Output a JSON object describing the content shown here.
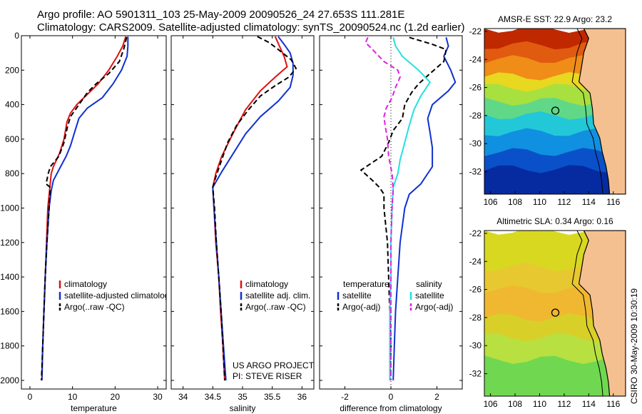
{
  "figure": {
    "title_line1": "Argo profile: AO 5901311_103 25-May-2009 20090526_24 27.653S 111.281E",
    "title_line2": "Climatology: CARS2009. Satellite-adjusted climatology: synTS_20090524.nc (1.2d earlier)",
    "side_stamp": "CSIRO 30-May-2009 10:30:19"
  },
  "colors": {
    "climatology": "#e01010",
    "satellite": "#1030d0",
    "argo": "#000000",
    "satellite_salinity": "#22e0e0",
    "argo_salinity": "#e020e0",
    "land": "#f5c090"
  },
  "chart_data": [
    {
      "type": "line",
      "panel": "temperature",
      "xlabel": "temperature",
      "ylabel": "",
      "xlim": [
        -2,
        32
      ],
      "ylim": [
        2050,
        0
      ],
      "xticks": [
        0,
        10,
        20,
        30
      ],
      "yticks": [
        0,
        200,
        400,
        600,
        800,
        1000,
        1200,
        1400,
        1600,
        1800,
        2000
      ],
      "legend": [
        "climatology",
        "satellite-adjusted climatology",
        "Argo(..raw -QC)"
      ],
      "series": [
        {
          "name": "climatology",
          "color": "#e01010",
          "dash": "solid",
          "points": [
            [
              22.5,
              5
            ],
            [
              21.8,
              60
            ],
            [
              20.5,
              120
            ],
            [
              18.5,
              200
            ],
            [
              16,
              280
            ],
            [
              13.5,
              340
            ],
            [
              11,
              400
            ],
            [
              9.5,
              450
            ],
            [
              8.7,
              500
            ],
            [
              8,
              600
            ],
            [
              7,
              680
            ],
            [
              5.5,
              760
            ],
            [
              5,
              800
            ],
            [
              4.6,
              900
            ],
            [
              4.2,
              1000
            ],
            [
              3.9,
              1200
            ],
            [
              3.6,
              1400
            ],
            [
              3.3,
              1600
            ],
            [
              3,
              1800
            ],
            [
              2.8,
              2000
            ]
          ]
        },
        {
          "name": "satellite-adjusted climatology",
          "color": "#1030d0",
          "dash": "solid",
          "points": [
            [
              23,
              5
            ],
            [
              23,
              60
            ],
            [
              22.8,
              120
            ],
            [
              21.5,
              200
            ],
            [
              19.5,
              280
            ],
            [
              17,
              360
            ],
            [
              13.5,
              420
            ],
            [
              11.5,
              480
            ],
            [
              10.5,
              560
            ],
            [
              9.5,
              640
            ],
            [
              8.5,
              700
            ],
            [
              7,
              770
            ],
            [
              5.5,
              840
            ],
            [
              5,
              900
            ],
            [
              4.5,
              1000
            ],
            [
              4,
              1200
            ],
            [
              3.6,
              1400
            ],
            [
              3.3,
              1600
            ],
            [
              3,
              1800
            ],
            [
              2.8,
              2000
            ]
          ]
        },
        {
          "name": "Argo(..raw -QC)",
          "color": "#000000",
          "dash": "dash",
          "points": [
            [
              22.7,
              8
            ],
            [
              22.5,
              30
            ],
            [
              22,
              80
            ],
            [
              21,
              150
            ],
            [
              18.5,
              220
            ],
            [
              15.5,
              280
            ],
            [
              13.5,
              330
            ],
            [
              11.5,
              400
            ],
            [
              9.5,
              470
            ],
            [
              8.8,
              530
            ],
            [
              8,
              620
            ],
            [
              6.8,
              700
            ],
            [
              4.8,
              760
            ],
            [
              4.3,
              800
            ],
            [
              3.8,
              860
            ],
            [
              4.8,
              880
            ],
            [
              4.5,
              1000
            ],
            [
              4,
              1200
            ],
            [
              3.6,
              1400
            ],
            [
              3.3,
              1600
            ],
            [
              3,
              1800
            ],
            [
              2.7,
              2000
            ]
          ]
        }
      ]
    },
    {
      "type": "line",
      "panel": "salinity",
      "xlabel": "salinity",
      "ylabel": "",
      "xlim": [
        33.8,
        36.2
      ],
      "ylim": [
        2050,
        0
      ],
      "xticks": [
        34,
        34.5,
        35,
        35.5,
        36
      ],
      "yticks": [
        0,
        200,
        400,
        600,
        800,
        1000,
        1200,
        1400,
        1600,
        1800,
        2000
      ],
      "legend": [
        "climatology",
        "satellite adj. clim.",
        "Argo(..raw -QC)"
      ],
      "annotation": [
        "US ARGO PROJECT",
        "PI: STEVE RISER"
      ],
      "series": [
        {
          "name": "climatology",
          "color": "#e01010",
          "dash": "solid",
          "points": [
            [
              35.55,
              5
            ],
            [
              35.62,
              60
            ],
            [
              35.7,
              120
            ],
            [
              35.75,
              180
            ],
            [
              35.55,
              240
            ],
            [
              35.3,
              320
            ],
            [
              35.05,
              430
            ],
            [
              34.85,
              560
            ],
            [
              34.65,
              700
            ],
            [
              34.55,
              800
            ],
            [
              34.5,
              880
            ],
            [
              34.52,
              1000
            ],
            [
              34.55,
              1200
            ],
            [
              34.6,
              1400
            ],
            [
              34.63,
              1600
            ],
            [
              34.67,
              1800
            ],
            [
              34.7,
              2000
            ]
          ]
        },
        {
          "name": "satellite adj. clim.",
          "color": "#1030d0",
          "dash": "solid",
          "points": [
            [
              35.6,
              5
            ],
            [
              35.7,
              50
            ],
            [
              35.8,
              100
            ],
            [
              35.85,
              160
            ],
            [
              35.85,
              230
            ],
            [
              35.8,
              300
            ],
            [
              35.6,
              380
            ],
            [
              35.3,
              470
            ],
            [
              35.05,
              570
            ],
            [
              34.85,
              680
            ],
            [
              34.65,
              790
            ],
            [
              34.5,
              880
            ],
            [
              34.52,
              1000
            ],
            [
              34.56,
              1200
            ],
            [
              34.6,
              1400
            ],
            [
              34.64,
              1600
            ],
            [
              34.68,
              1800
            ],
            [
              34.72,
              2000
            ]
          ]
        },
        {
          "name": "Argo(..raw -QC)",
          "color": "#000000",
          "dash": "dash",
          "points": [
            [
              35.25,
              5
            ],
            [
              35.45,
              40
            ],
            [
              35.6,
              80
            ],
            [
              35.82,
              140
            ],
            [
              35.9,
              190
            ],
            [
              35.78,
              240
            ],
            [
              35.55,
              290
            ],
            [
              35.3,
              350
            ],
            [
              35.1,
              430
            ],
            [
              34.9,
              520
            ],
            [
              34.75,
              620
            ],
            [
              34.65,
              720
            ],
            [
              34.55,
              820
            ],
            [
              34.5,
              880
            ],
            [
              34.53,
              1000
            ],
            [
              34.56,
              1200
            ],
            [
              34.6,
              1400
            ],
            [
              34.64,
              1600
            ],
            [
              34.67,
              1800
            ],
            [
              34.7,
              2000
            ]
          ]
        }
      ]
    },
    {
      "type": "line",
      "panel": "difference",
      "xlabel": "difference from climatology",
      "ylabel": "",
      "xlim": [
        -3.1,
        3.1
      ],
      "ylim": [
        2050,
        0
      ],
      "xticks": [
        -2,
        0,
        2
      ],
      "yticks": [
        0,
        200,
        400,
        600,
        800,
        1000,
        1200,
        1400,
        1600,
        1800,
        2000
      ],
      "legend_groups": [
        {
          "heading": "temperature",
          "entries": [
            "satellite",
            "Argo(-adj)"
          ]
        },
        {
          "heading": "salinity",
          "entries": [
            "satellite",
            "Argo(-adj)"
          ]
        }
      ],
      "zero_line": 0,
      "series": [
        {
          "name": "temperature satellite",
          "color": "#1030d0",
          "dash": "solid",
          "points": [
            [
              2.4,
              10
            ],
            [
              2.5,
              60
            ],
            [
              2.3,
              120
            ],
            [
              2.6,
              200
            ],
            [
              2.8,
              270
            ],
            [
              2.5,
              320
            ],
            [
              1.8,
              400
            ],
            [
              1.6,
              480
            ],
            [
              1.7,
              560
            ],
            [
              1.8,
              650
            ],
            [
              1.8,
              760
            ],
            [
              1.3,
              860
            ],
            [
              0.8,
              920
            ],
            [
              0.6,
              1000
            ],
            [
              0.4,
              1200
            ],
            [
              0.3,
              1400
            ],
            [
              0.2,
              1600
            ],
            [
              0.15,
              1800
            ],
            [
              0.1,
              2000
            ]
          ]
        },
        {
          "name": "temperature Argo(-adj)",
          "color": "#000000",
          "dash": "dash",
          "points": [
            [
              0.8,
              10
            ],
            [
              1.8,
              50
            ],
            [
              2.4,
              80
            ],
            [
              2.3,
              150
            ],
            [
              1.7,
              220
            ],
            [
              1.2,
              280
            ],
            [
              0.9,
              330
            ],
            [
              0.6,
              400
            ],
            [
              0.5,
              480
            ],
            [
              0.1,
              550
            ],
            [
              -0.1,
              620
            ],
            [
              -0.4,
              700
            ],
            [
              -1.3,
              780
            ],
            [
              -0.8,
              840
            ],
            [
              -0.5,
              880
            ],
            [
              -0.3,
              920
            ],
            [
              -0.3,
              1000
            ],
            [
              -0.15,
              1200
            ],
            [
              -0.1,
              1400
            ],
            [
              -0.05,
              1600
            ],
            [
              0,
              1800
            ],
            [
              -0.05,
              2000
            ]
          ]
        },
        {
          "name": "salinity satellite",
          "color": "#22e0e0",
          "dash": "solid",
          "points": [
            [
              0.1,
              10
            ],
            [
              0.2,
              60
            ],
            [
              0.5,
              120
            ],
            [
              1.2,
              200
            ],
            [
              1.7,
              270
            ],
            [
              1.3,
              350
            ],
            [
              1.0,
              430
            ],
            [
              0.8,
              520
            ],
            [
              0.6,
              620
            ],
            [
              0.4,
              720
            ],
            [
              0.3,
              800
            ],
            [
              0.1,
              880
            ],
            [
              0.05,
              1000
            ],
            [
              0,
              1200
            ],
            [
              0,
              1400
            ],
            [
              -0.05,
              1600
            ],
            [
              -0.05,
              1800
            ],
            [
              -0.05,
              2000
            ]
          ]
        },
        {
          "name": "salinity Argo(-adj)",
          "color": "#e020e0",
          "dash": "dash",
          "points": [
            [
              -1.0,
              10
            ],
            [
              -1.1,
              40
            ],
            [
              -0.8,
              80
            ],
            [
              -0.3,
              150
            ],
            [
              0.3,
              200
            ],
            [
              0.4,
              240
            ],
            [
              0.2,
              300
            ],
            [
              0.05,
              360
            ],
            [
              -0.2,
              420
            ],
            [
              -0.3,
              470
            ],
            [
              -0.25,
              520
            ],
            [
              -0.15,
              600
            ],
            [
              -0.1,
              700
            ],
            [
              0.05,
              800
            ],
            [
              0.1,
              900
            ],
            [
              0.05,
              1000
            ],
            [
              0,
              1200
            ],
            [
              0,
              1400
            ],
            [
              0,
              1600
            ],
            [
              0,
              1800
            ],
            [
              0,
              2000
            ]
          ]
        }
      ]
    },
    {
      "type": "heatmap",
      "panel": "sst_map",
      "title": "AMSR-E SST: 22.9 Argo: 23.2",
      "xlim": [
        105.5,
        117
      ],
      "ylim": [
        -33.6,
        -21.8
      ],
      "xticks": [
        106,
        108,
        110,
        112,
        114,
        116
      ],
      "yticks": [
        -22,
        -24,
        -26,
        -28,
        -30,
        -32
      ],
      "float_position": [
        111.28,
        -27.65
      ],
      "color_bands": [
        {
          "lat_top": -21.8,
          "color": "#c02800"
        },
        {
          "lat_top": -23.0,
          "color": "#e05a10"
        },
        {
          "lat_top": -24.0,
          "color": "#f08c18"
        },
        {
          "lat_top": -25.2,
          "color": "#e8d820"
        },
        {
          "lat_top": -26.0,
          "color": "#a8e040"
        },
        {
          "lat_top": -27.0,
          "color": "#60d888"
        },
        {
          "lat_top": -28.0,
          "color": "#22c8d8"
        },
        {
          "lat_top": -29.2,
          "color": "#1090e0"
        },
        {
          "lat_top": -30.6,
          "color": "#0a50c8"
        },
        {
          "lat_top": -31.8,
          "color": "#062aa0"
        }
      ]
    },
    {
      "type": "heatmap",
      "panel": "sla_map",
      "title": "Altimetric SLA: 0.34 Argo: 0.16",
      "xlim": [
        105.5,
        117
      ],
      "ylim": [
        -33.6,
        -21.8
      ],
      "xticks": [
        106,
        108,
        110,
        112,
        114,
        116
      ],
      "yticks": [
        -22,
        -24,
        -26,
        -28,
        -30,
        -32
      ],
      "float_position": [
        111.28,
        -27.65
      ],
      "color_bands": [
        {
          "lat_top": -21.8,
          "color": "#d8d820"
        },
        {
          "lat_top": -24.4,
          "color": "#e8c830"
        },
        {
          "lat_top": -26.0,
          "color": "#f0b830"
        },
        {
          "lat_top": -28.0,
          "color": "#d8d028"
        },
        {
          "lat_top": -29.4,
          "color": "#b8e040"
        },
        {
          "lat_top": -31.0,
          "color": "#70d850"
        }
      ]
    }
  ]
}
